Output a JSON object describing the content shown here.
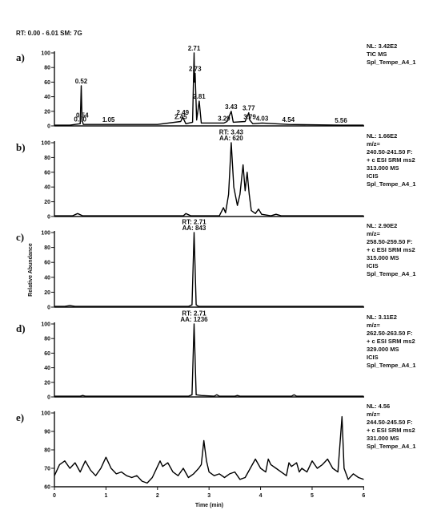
{
  "header": {
    "range_text": "RT: 0.00 - 6.01   SM: 7G"
  },
  "chart_data": [
    {
      "type": "line",
      "panel_label": "a)",
      "xlim": [
        0,
        6.01
      ],
      "ylim": [
        0,
        100
      ],
      "yticks": [
        0,
        20,
        40,
        60,
        80,
        100
      ],
      "info": [
        "NL: 3.42E2",
        "TIC  MS",
        "Spl_Tempe_A4_1"
      ],
      "peak_labels": [
        {
          "x": 0.5,
          "y": 3,
          "text": "0.50"
        },
        {
          "x": 0.54,
          "y": 8,
          "text": "0.54"
        },
        {
          "x": 0.52,
          "y": 55,
          "text": "0.52"
        },
        {
          "x": 1.05,
          "y": 2,
          "text": "1.05"
        },
        {
          "x": 2.45,
          "y": 6,
          "text": "2.45"
        },
        {
          "x": 2.49,
          "y": 12,
          "text": "2.49"
        },
        {
          "x": 2.71,
          "y": 100,
          "text": "2.71"
        },
        {
          "x": 2.73,
          "y": 72,
          "text": "2.73"
        },
        {
          "x": 2.81,
          "y": 34,
          "text": "2.81"
        },
        {
          "x": 3.29,
          "y": 4,
          "text": "3.29"
        },
        {
          "x": 3.43,
          "y": 20,
          "text": "3.43"
        },
        {
          "x": 3.77,
          "y": 18,
          "text": "3.77"
        },
        {
          "x": 3.79,
          "y": 6,
          "text": "3.79"
        },
        {
          "x": 4.03,
          "y": 4,
          "text": "4.03"
        },
        {
          "x": 4.54,
          "y": 2,
          "text": "4.54"
        },
        {
          "x": 5.56,
          "y": 1,
          "text": "5.56"
        }
      ],
      "series": [
        {
          "points": [
            [
              0,
              1
            ],
            [
              0.3,
              1
            ],
            [
              0.5,
              3
            ],
            [
              0.52,
              55
            ],
            [
              0.535,
              8
            ],
            [
              0.56,
              2
            ],
            [
              1.05,
              2
            ],
            [
              2.0,
              2
            ],
            [
              2.45,
              6
            ],
            [
              2.49,
              12
            ],
            [
              2.55,
              3
            ],
            [
              2.68,
              5
            ],
            [
              2.71,
              100
            ],
            [
              2.72,
              60
            ],
            [
              2.73,
              72
            ],
            [
              2.76,
              8
            ],
            [
              2.81,
              34
            ],
            [
              2.85,
              4
            ],
            [
              3.29,
              4
            ],
            [
              3.35,
              6
            ],
            [
              3.43,
              20
            ],
            [
              3.47,
              5
            ],
            [
              3.7,
              6
            ],
            [
              3.77,
              18
            ],
            [
              3.79,
              8
            ],
            [
              3.85,
              3
            ],
            [
              4.03,
              4
            ],
            [
              4.54,
              2
            ],
            [
              5.56,
              1
            ],
            [
              6.0,
              1
            ]
          ]
        }
      ]
    },
    {
      "type": "line",
      "panel_label": "b)",
      "xlim": [
        0,
        6.01
      ],
      "ylim": [
        0,
        100
      ],
      "yticks": [
        0,
        20,
        40,
        60,
        80,
        100
      ],
      "info": [
        "NL: 1.66E2",
        "m/z=",
        "240.50-241.50 F:",
        "+ c ESI SRM ms2",
        "313.000  MS",
        "ICIS",
        "Spl_Tempe_A4_1"
      ],
      "peak_labels": [
        {
          "x": 3.43,
          "y": 108,
          "text": "RT: 3.43"
        },
        {
          "x": 3.43,
          "y": 100,
          "text": "AA: 620"
        }
      ],
      "series": [
        {
          "points": [
            [
              0,
              1
            ],
            [
              0.35,
              1
            ],
            [
              0.45,
              4
            ],
            [
              0.55,
              1
            ],
            [
              1.5,
              1
            ],
            [
              2.5,
              1
            ],
            [
              2.55,
              4
            ],
            [
              2.65,
              1
            ],
            [
              3.2,
              1
            ],
            [
              3.28,
              12
            ],
            [
              3.32,
              5
            ],
            [
              3.38,
              30
            ],
            [
              3.43,
              100
            ],
            [
              3.48,
              40
            ],
            [
              3.55,
              15
            ],
            [
              3.6,
              30
            ],
            [
              3.66,
              70
            ],
            [
              3.7,
              35
            ],
            [
              3.74,
              60
            ],
            [
              3.78,
              30
            ],
            [
              3.82,
              8
            ],
            [
              3.9,
              4
            ],
            [
              3.96,
              10
            ],
            [
              4.02,
              3
            ],
            [
              4.2,
              1
            ],
            [
              4.3,
              3
            ],
            [
              4.4,
              1
            ],
            [
              6.0,
              1
            ]
          ]
        }
      ]
    },
    {
      "type": "line",
      "panel_label": "c)",
      "xlim": [
        0,
        6.01
      ],
      "ylim": [
        0,
        100
      ],
      "yticks": [
        0,
        20,
        40,
        60,
        80,
        100
      ],
      "ylabel": "Relative Abundance",
      "info": [
        "NL: 2.90E2",
        "m/z=",
        "258.50-259.50 F:",
        "+ c ESI SRM ms2",
        "315.000  MS",
        "ICIS",
        "Spl_Tempe_A4_1"
      ],
      "peak_labels": [
        {
          "x": 2.71,
          "y": 108,
          "text": "RT: 2.71"
        },
        {
          "x": 2.71,
          "y": 100,
          "text": "AA: 843"
        }
      ],
      "series": [
        {
          "points": [
            [
              0,
              1
            ],
            [
              0.2,
              1
            ],
            [
              0.3,
              2
            ],
            [
              0.4,
              1
            ],
            [
              2.6,
              1
            ],
            [
              2.67,
              3
            ],
            [
              2.71,
              100
            ],
            [
              2.75,
              3
            ],
            [
              2.8,
              1
            ],
            [
              6.0,
              1
            ]
          ]
        }
      ]
    },
    {
      "type": "line",
      "panel_label": "d)",
      "xlim": [
        0,
        6.01
      ],
      "ylim": [
        0,
        100
      ],
      "yticks": [
        0,
        20,
        40,
        60,
        80,
        100
      ],
      "info": [
        "NL: 3.11E2",
        "m/z=",
        "262.50-263.50 F:",
        "+ c ESI SRM ms2",
        "329.000  MS",
        "ICIS",
        "Spl_Tempe_A4_1"
      ],
      "peak_labels": [
        {
          "x": 2.71,
          "y": 108,
          "text": "RT: 2.71"
        },
        {
          "x": 2.71,
          "y": 100,
          "text": "AA: 1236"
        }
      ],
      "series": [
        {
          "points": [
            [
              0,
              1
            ],
            [
              0.5,
              1
            ],
            [
              0.55,
              2
            ],
            [
              0.6,
              1
            ],
            [
              2.6,
              1
            ],
            [
              2.67,
              3
            ],
            [
              2.71,
              100
            ],
            [
              2.75,
              3
            ],
            [
              2.85,
              2
            ],
            [
              3.1,
              1
            ],
            [
              3.15,
              3
            ],
            [
              3.2,
              1
            ],
            [
              3.5,
              1
            ],
            [
              3.55,
              2
            ],
            [
              3.6,
              1
            ],
            [
              4.6,
              1
            ],
            [
              4.65,
              3
            ],
            [
              4.7,
              1
            ],
            [
              6.0,
              1
            ]
          ]
        }
      ]
    },
    {
      "type": "line",
      "panel_label": "e)",
      "xlim": [
        0,
        6.01
      ],
      "ylim": [
        60,
        100
      ],
      "yticks": [
        60,
        70,
        80,
        90,
        100
      ],
      "xticks": [
        0,
        1,
        2,
        3,
        4,
        5,
        6
      ],
      "xlabel": "Time (min)",
      "info": [
        "NL: 4.56",
        "m/z=",
        "244.50-245.50 F:",
        "+ c ESI SRM ms2",
        "331.000  MS",
        "Spl_Tempe_A4_1"
      ],
      "series": [
        {
          "points": [
            [
              0,
              66
            ],
            [
              0.1,
              72
            ],
            [
              0.2,
              74
            ],
            [
              0.3,
              70
            ],
            [
              0.4,
              73
            ],
            [
              0.5,
              68
            ],
            [
              0.6,
              74
            ],
            [
              0.7,
              69
            ],
            [
              0.8,
              66
            ],
            [
              0.9,
              70
            ],
            [
              1.0,
              76
            ],
            [
              1.1,
              70
            ],
            [
              1.2,
              67
            ],
            [
              1.3,
              68
            ],
            [
              1.4,
              66
            ],
            [
              1.5,
              65
            ],
            [
              1.6,
              66
            ],
            [
              1.7,
              63
            ],
            [
              1.8,
              62
            ],
            [
              1.9,
              65
            ],
            [
              2.0,
              71
            ],
            [
              2.05,
              74
            ],
            [
              2.1,
              71
            ],
            [
              2.2,
              73
            ],
            [
              2.3,
              68
            ],
            [
              2.4,
              66
            ],
            [
              2.5,
              70
            ],
            [
              2.6,
              65
            ],
            [
              2.7,
              67
            ],
            [
              2.8,
              70
            ],
            [
              2.85,
              72
            ],
            [
              2.9,
              85
            ],
            [
              2.95,
              74
            ],
            [
              3.0,
              68
            ],
            [
              3.1,
              66
            ],
            [
              3.2,
              67
            ],
            [
              3.3,
              65
            ],
            [
              3.4,
              67
            ],
            [
              3.5,
              68
            ],
            [
              3.6,
              64
            ],
            [
              3.7,
              65
            ],
            [
              3.8,
              70
            ],
            [
              3.9,
              75
            ],
            [
              4.0,
              70
            ],
            [
              4.1,
              68
            ],
            [
              4.15,
              75
            ],
            [
              4.2,
              72
            ],
            [
              4.3,
              70
            ],
            [
              4.4,
              68
            ],
            [
              4.5,
              66
            ],
            [
              4.55,
              73
            ],
            [
              4.6,
              71
            ],
            [
              4.7,
              73
            ],
            [
              4.75,
              68
            ],
            [
              4.8,
              70
            ],
            [
              4.9,
              68
            ],
            [
              5.0,
              74
            ],
            [
              5.1,
              70
            ],
            [
              5.2,
              72
            ],
            [
              5.3,
              75
            ],
            [
              5.4,
              70
            ],
            [
              5.5,
              68
            ],
            [
              5.58,
              98
            ],
            [
              5.62,
              70
            ],
            [
              5.7,
              64
            ],
            [
              5.8,
              67
            ],
            [
              5.9,
              65
            ],
            [
              6.0,
              64
            ]
          ]
        }
      ]
    }
  ]
}
